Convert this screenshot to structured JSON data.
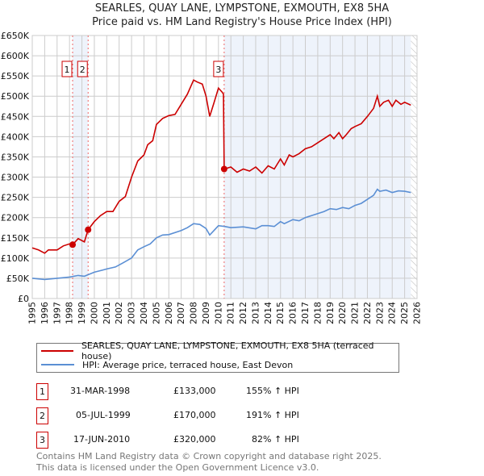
{
  "title_line1": "SEARLES, QUAY LANE, LYMPSTONE, EXMOUTH, EX8 5HA",
  "title_line2": "Price paid vs. HM Land Registry's House Price Index (HPI)",
  "colors": {
    "property": "#cc0000",
    "hpi": "#5b8fd4",
    "shade": "#eef3fb"
  },
  "chart_data": {
    "type": "line",
    "title": "SEARLES, QUAY LANE, LYMPSTONE, EXMOUTH, EX8 5HA",
    "subtitle": "Price paid vs. HM Land Registry's House Price Index (HPI)",
    "xlim": [
      1995,
      2026
    ],
    "ylim": [
      0,
      650000
    ],
    "grid": true,
    "y_ticks": [
      "£0",
      "£50K",
      "£100K",
      "£150K",
      "£200K",
      "£250K",
      "£300K",
      "£350K",
      "£400K",
      "£450K",
      "£500K",
      "£550K",
      "£600K",
      "£650K"
    ],
    "x_ticks": [
      "1995",
      "1996",
      "1997",
      "1998",
      "1999",
      "2000",
      "2001",
      "2002",
      "2003",
      "2004",
      "2005",
      "2006",
      "2007",
      "2008",
      "2009",
      "2010",
      "2011",
      "2012",
      "2013",
      "2014",
      "2015",
      "2016",
      "2017",
      "2018",
      "2019",
      "2020",
      "2021",
      "2022",
      "2023",
      "2024",
      "2025",
      "2026"
    ],
    "legend_placement": "below",
    "series": [
      {
        "name": "SEARLES, QUAY LANE, LYMPSTONE, EXMOUTH, EX8 5HA (terraced house)",
        "color": "#cc0000",
        "points": [
          [
            1995,
            125
          ],
          [
            1995.5,
            120
          ],
          [
            1996,
            112
          ],
          [
            1996.3,
            120
          ],
          [
            1997,
            120
          ],
          [
            1997.5,
            130
          ],
          [
            1998,
            135
          ],
          [
            1998.25,
            133
          ],
          [
            1998.7,
            148
          ],
          [
            1999.2,
            140
          ],
          [
            1999.5,
            170
          ],
          [
            2000,
            190
          ],
          [
            2000.5,
            205
          ],
          [
            2001,
            215
          ],
          [
            2001.5,
            215
          ],
          [
            2002,
            240
          ],
          [
            2002.5,
            252
          ],
          [
            2003,
            300
          ],
          [
            2003.5,
            340
          ],
          [
            2004,
            355
          ],
          [
            2004.3,
            380
          ],
          [
            2004.7,
            390
          ],
          [
            2005,
            430
          ],
          [
            2005.5,
            445
          ],
          [
            2006,
            452
          ],
          [
            2006.5,
            455
          ],
          [
            2007,
            480
          ],
          [
            2007.5,
            505
          ],
          [
            2008,
            540
          ],
          [
            2008.3,
            535
          ],
          [
            2008.7,
            530
          ],
          [
            2009,
            500
          ],
          [
            2009.3,
            450
          ],
          [
            2009.6,
            480
          ],
          [
            2010,
            520
          ],
          [
            2010.3,
            510
          ],
          [
            2010.4,
            505
          ],
          [
            2010.46,
            320
          ],
          [
            2011,
            325
          ],
          [
            2011.5,
            312
          ],
          [
            2012,
            320
          ],
          [
            2012.5,
            315
          ],
          [
            2013,
            325
          ],
          [
            2013.5,
            310
          ],
          [
            2014,
            328
          ],
          [
            2014.5,
            320
          ],
          [
            2015,
            345
          ],
          [
            2015.3,
            330
          ],
          [
            2015.7,
            355
          ],
          [
            2016,
            350
          ],
          [
            2016.5,
            358
          ],
          [
            2017,
            370
          ],
          [
            2017.5,
            375
          ],
          [
            2018,
            385
          ],
          [
            2018.5,
            395
          ],
          [
            2019,
            405
          ],
          [
            2019.3,
            395
          ],
          [
            2019.7,
            410
          ],
          [
            2020,
            395
          ],
          [
            2020.3,
            405
          ],
          [
            2020.7,
            420
          ],
          [
            2021,
            425
          ],
          [
            2021.5,
            432
          ],
          [
            2022,
            450
          ],
          [
            2022.5,
            470
          ],
          [
            2022.8,
            500
          ],
          [
            2023,
            475
          ],
          [
            2023.3,
            485
          ],
          [
            2023.7,
            490
          ],
          [
            2024,
            475
          ],
          [
            2024.3,
            490
          ],
          [
            2024.7,
            480
          ],
          [
            2025,
            485
          ],
          [
            2025.5,
            478
          ]
        ]
      },
      {
        "name": "HPI: Average price, terraced house, East Devon",
        "color": "#5b8fd4",
        "points": [
          [
            1995,
            50
          ],
          [
            1996,
            47
          ],
          [
            1997,
            50
          ],
          [
            1998,
            53
          ],
          [
            1998.7,
            57
          ],
          [
            1999.2,
            55
          ],
          [
            1999.6,
            60
          ],
          [
            2000,
            65
          ],
          [
            2001,
            73
          ],
          [
            2001.7,
            78
          ],
          [
            2002.3,
            88
          ],
          [
            2003,
            100
          ],
          [
            2003.5,
            120
          ],
          [
            2004,
            128
          ],
          [
            2004.5,
            135
          ],
          [
            2005,
            150
          ],
          [
            2005.5,
            157
          ],
          [
            2006,
            158
          ],
          [
            2007,
            168
          ],
          [
            2007.5,
            175
          ],
          [
            2008,
            185
          ],
          [
            2008.5,
            183
          ],
          [
            2009,
            173
          ],
          [
            2009.3,
            157
          ],
          [
            2009.7,
            170
          ],
          [
            2010,
            180
          ],
          [
            2010.5,
            178
          ],
          [
            2011,
            175
          ],
          [
            2012,
            177
          ],
          [
            2013,
            172
          ],
          [
            2013.5,
            180
          ],
          [
            2014,
            180
          ],
          [
            2014.5,
            178
          ],
          [
            2015,
            190
          ],
          [
            2015.3,
            185
          ],
          [
            2016,
            195
          ],
          [
            2016.5,
            192
          ],
          [
            2017,
            200
          ],
          [
            2017.5,
            205
          ],
          [
            2018,
            210
          ],
          [
            2018.5,
            215
          ],
          [
            2019,
            222
          ],
          [
            2019.5,
            220
          ],
          [
            2020,
            225
          ],
          [
            2020.5,
            222
          ],
          [
            2021,
            230
          ],
          [
            2021.5,
            235
          ],
          [
            2022,
            245
          ],
          [
            2022.5,
            255
          ],
          [
            2022.8,
            270
          ],
          [
            2023,
            265
          ],
          [
            2023.5,
            268
          ],
          [
            2024,
            262
          ],
          [
            2024.5,
            266
          ],
          [
            2025,
            265
          ],
          [
            2025.5,
            262
          ]
        ]
      }
    ],
    "value_units": "thousands GBP",
    "sales": [
      {
        "label": "1",
        "x": 1998.25,
        "value": 133
      },
      {
        "label": "2",
        "x": 1999.5,
        "value": 170
      },
      {
        "label": "3",
        "x": 2010.46,
        "value": 320
      }
    ],
    "data_end": 2025.5
  },
  "legend": {
    "property": "SEARLES, QUAY LANE, LYMPSTONE, EXMOUTH, EX8 5HA (terraced house)",
    "hpi": "HPI: Average price, terraced house, East Devon"
  },
  "transactions": [
    {
      "num": "1",
      "date": "31-MAR-1998",
      "price": "£133,000",
      "hpi": "155% ↑ HPI"
    },
    {
      "num": "2",
      "date": "05-JUL-1999",
      "price": "£170,000",
      "hpi": "191% ↑ HPI"
    },
    {
      "num": "3",
      "date": "17-JUN-2010",
      "price": "£320,000",
      "hpi": "82% ↑ HPI"
    }
  ],
  "footer_line1": "Contains HM Land Registry data © Crown copyright and database right 2025.",
  "footer_line2": "This data is licensed under the Open Government Licence v3.0."
}
